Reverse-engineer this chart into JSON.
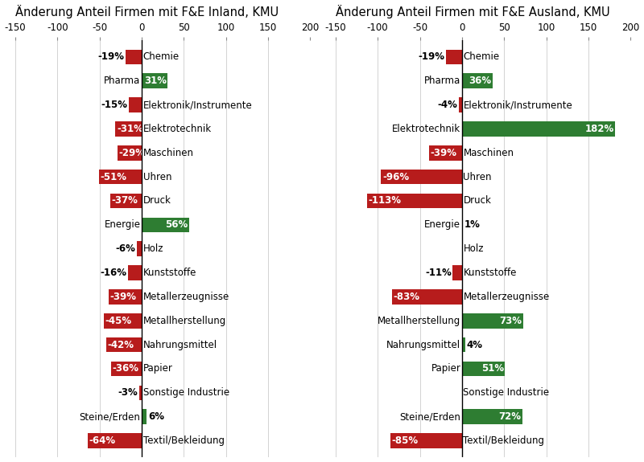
{
  "title_left": "Änderung Anteil Firmen mit F&E Inland, KMU",
  "title_right": "Änderung Anteil Firmen mit F&E Ausland, KMU",
  "categories": [
    "Chemie",
    "Pharma",
    "Elektronik/Instrumente",
    "Elektrotechnik",
    "Maschinen",
    "Uhren",
    "Druck",
    "Energie",
    "Holz",
    "Kunststoffe",
    "Metallerzeugnisse",
    "Metallherstellung",
    "Nahrungsmittel",
    "Papier",
    "Sonstige Industrie",
    "Steine/Erden",
    "Textil/Bekleidung"
  ],
  "values_inland": [
    -19,
    31,
    -15,
    -31,
    -29,
    -51,
    -37,
    56,
    -6,
    -16,
    -39,
    -45,
    -42,
    -36,
    -3,
    6,
    -64
  ],
  "values_ausland": [
    -19,
    36,
    -4,
    182,
    -39,
    -96,
    -113,
    1,
    0,
    -11,
    -83,
    73,
    4,
    51,
    0,
    72,
    -85
  ],
  "color_positive": "#2e7d32",
  "color_negative": "#b71c1c",
  "xlim": [
    -150,
    200
  ],
  "xticks": [
    -150,
    -100,
    -50,
    0,
    50,
    100,
    150,
    200
  ],
  "background_color": "#ffffff",
  "title_fontsize": 10.5,
  "label_fontsize": 8.5,
  "cat_fontsize": 8.5,
  "tick_fontsize": 8.5,
  "bar_height": 0.62,
  "inside_threshold": 20
}
